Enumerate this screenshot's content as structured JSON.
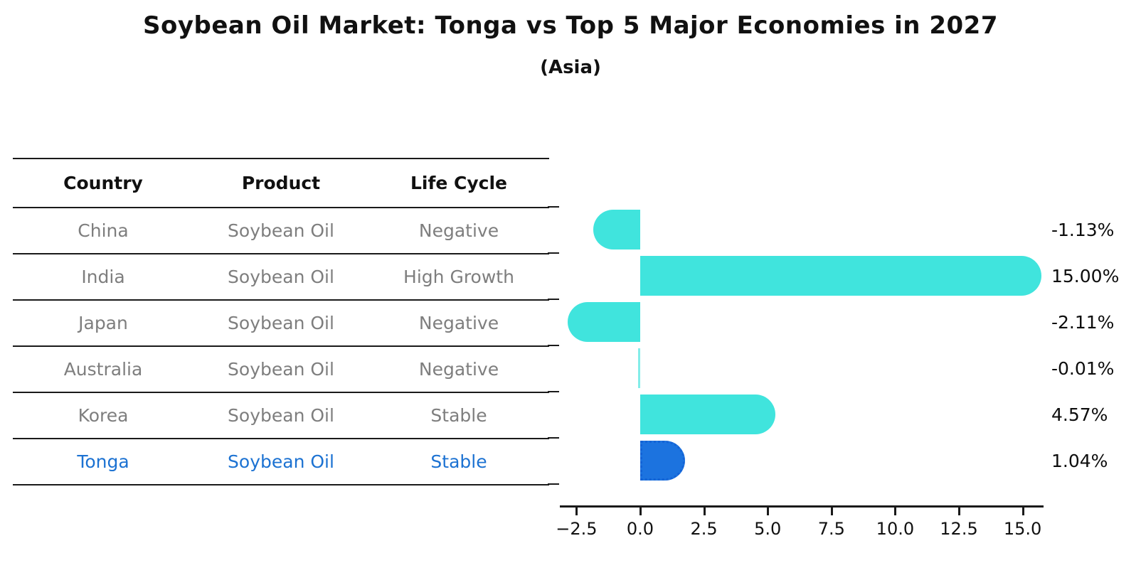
{
  "title": "Soybean Oil Market: Tonga vs Top 5 Major Economies in 2027",
  "subtitle": "(Asia)",
  "table": {
    "headers": [
      "Country",
      "Product",
      "Life Cycle"
    ],
    "rows": [
      {
        "country": "China",
        "product": "Soybean Oil",
        "life_cycle": "Negative",
        "highlighted": false
      },
      {
        "country": "India",
        "product": "Soybean Oil",
        "life_cycle": "High Growth",
        "highlighted": false
      },
      {
        "country": "Japan",
        "product": "Soybean Oil",
        "life_cycle": "Negative",
        "highlighted": false
      },
      {
        "country": "Australia",
        "product": "Soybean Oil",
        "life_cycle": "Negative",
        "highlighted": false
      },
      {
        "country": "Korea",
        "product": "Soybean Oil",
        "life_cycle": "Stable",
        "highlighted": false
      },
      {
        "country": "Tonga",
        "product": "Soybean Oil",
        "life_cycle": "Stable",
        "highlighted": true
      }
    ]
  },
  "chart_data": {
    "type": "bar",
    "orientation": "horizontal",
    "title": "Soybean Oil Market: Tonga vs Top 5 Major Economies in 2027 (Asia)",
    "categories": [
      "China",
      "India",
      "Japan",
      "Australia",
      "Korea",
      "Tonga"
    ],
    "values": [
      -1.13,
      15.0,
      -2.11,
      -0.01,
      4.57,
      1.04
    ],
    "value_labels": [
      "-1.13%",
      "15.00%",
      "-2.11%",
      "-0.01%",
      "4.57%",
      "1.04%"
    ],
    "x_ticks": [
      "−2.5",
      "0.0",
      "2.5",
      "5.0",
      "7.5",
      "10.0",
      "12.5",
      "15.0"
    ],
    "x_tick_values": [
      -2.5,
      0.0,
      2.5,
      5.0,
      7.5,
      10.0,
      12.5,
      15.0
    ],
    "xlim": [
      -3.15,
      15.85
    ],
    "xlabel": "",
    "ylabel": "",
    "grid": false,
    "legend": null,
    "bar_color": "#40e4dd",
    "highlight_index": 5,
    "highlight_color": "#1c73df",
    "highlight_edge_color": "#1463d6",
    "highlight_edge_style": "dotted",
    "axis_color": "#1a1a1a",
    "label_color": "#0d0d0d",
    "row_text_color": "#7e7e7e",
    "highlight_text_color": "#1c72d2"
  }
}
